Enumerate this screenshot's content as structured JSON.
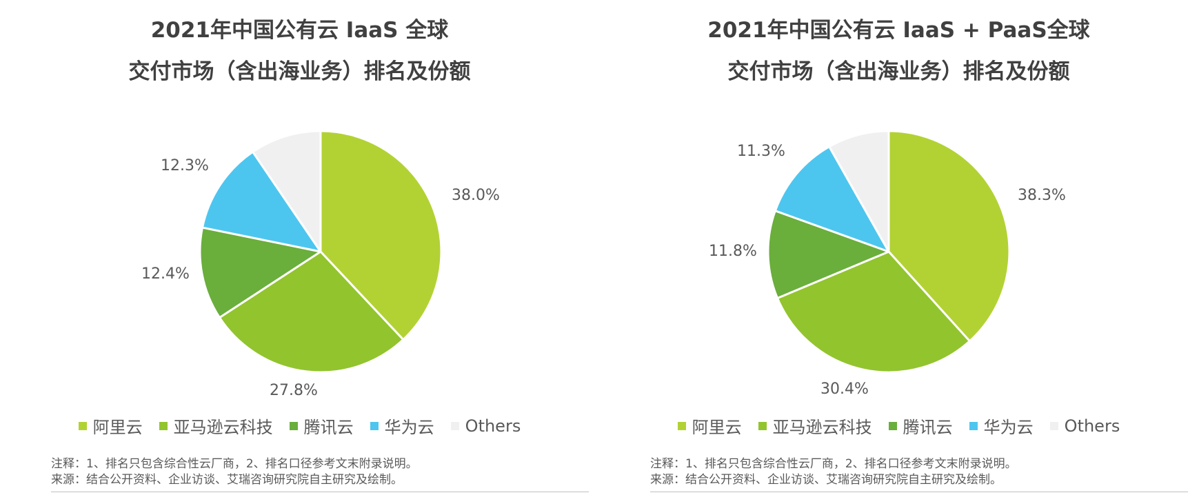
{
  "colors": {
    "alibaba": "#b2d234",
    "amazon": "#92c42e",
    "tencent": "#6aae3c",
    "huawei": "#4dc6ef",
    "others": "#f0f0f0"
  },
  "chart_data": [
    {
      "type": "pie",
      "title_line1": "2021年中国公有云 IaaS 全球",
      "title_line2": "交付市场（含出海业务）排名及份额",
      "labels": [
        "阿里云",
        "亚马逊云科技",
        "腾讯云",
        "华为云",
        "Others"
      ],
      "values": [
        38.0,
        27.8,
        12.4,
        12.3,
        9.5
      ],
      "data_labels": [
        "38.0%",
        "27.8%",
        "12.4%",
        "12.3%",
        ""
      ],
      "legend_position": "bottom",
      "note": "注释：1、排名只包含综合性云厂商，2、排名口径参考文末附录说明。",
      "source": "来源：结合公开资料、企业访谈、艾瑞咨询研究院自主研究及绘制。"
    },
    {
      "type": "pie",
      "title_line1": "2021年中国公有云 IaaS + PaaS全球",
      "title_line2": "交付市场（含出海业务）排名及份额",
      "labels": [
        "阿里云",
        "亚马逊云科技",
        "腾讯云",
        "华为云",
        "Others"
      ],
      "values": [
        38.3,
        30.4,
        11.8,
        11.3,
        8.2
      ],
      "data_labels": [
        "38.3%",
        "30.4%",
        "11.8%",
        "11.3%",
        ""
      ],
      "legend_position": "bottom",
      "note": "注释：1、排名只包含综合性云厂商，2、排名口径参考文末附录说明。",
      "source": "来源：结合公开资料、企业访谈、艾瑞咨询研究院自主研究及绘制。"
    }
  ]
}
